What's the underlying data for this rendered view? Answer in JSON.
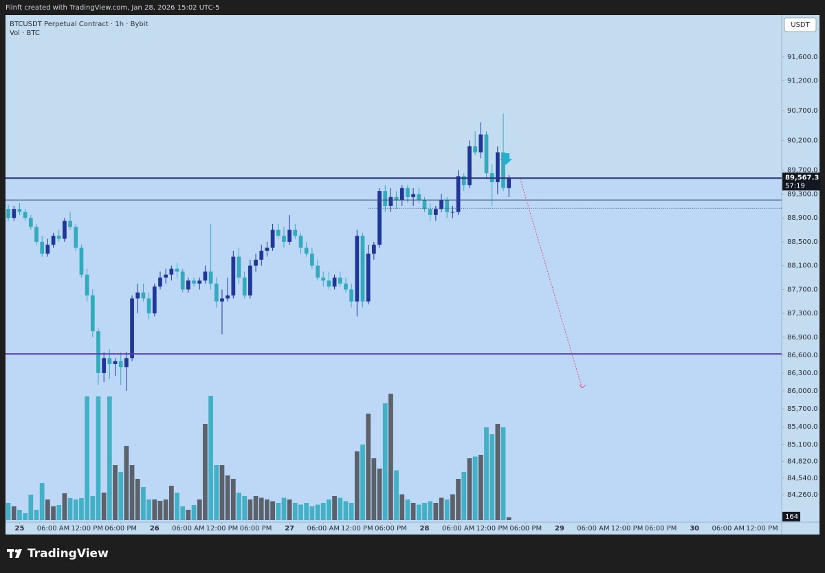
{
  "chart_data": {
    "type": "candlestick",
    "header": "Filnft created with TradingView.com, Jan 28, 2026 15:02 UTC-5",
    "title": "BTCUSDT Perpetual Contract · 1h · Bybit",
    "volume_title": "Vol · BTC",
    "currency": "USDT",
    "brand": "TradingView",
    "countdown": "57:19",
    "up_color": "#1f3796",
    "down_color": "#35a9be",
    "volume_up_color": "#5b626c",
    "volume_down_color": "#44b0c6",
    "open": [
      89050,
      88900,
      89050,
      89000,
      88900,
      88750,
      88500,
      88300,
      88450,
      88600,
      88550,
      88850,
      88750,
      88400,
      87950,
      87600,
      87000,
      86300,
      86550,
      86450,
      86500,
      86400,
      86550,
      87550,
      87650,
      87550,
      87300,
      87750,
      87900,
      87950,
      88050,
      88000,
      87700,
      87850,
      87800,
      87850,
      88000,
      87800,
      87500,
      87550,
      87600,
      88250,
      87900,
      87600,
      88100,
      88200,
      88350,
      88400,
      88700,
      88600,
      88500,
      88700,
      88600,
      88400,
      88300,
      88100,
      87900,
      87850,
      87750,
      87900,
      87800,
      87700,
      87500,
      88600,
      87500,
      88300,
      88450,
      89350,
      89100,
      89250,
      89200,
      89400,
      89250,
      89300,
      89200,
      89050,
      88950,
      89050,
      89200,
      89000,
      89000,
      89600,
      89450,
      90100,
      90000,
      90300,
      89650,
      89500,
      90000,
      89400
    ],
    "high": [
      89120,
      89100,
      89150,
      89050,
      88950,
      88800,
      88600,
      88550,
      88650,
      88700,
      88900,
      89000,
      88800,
      88450,
      88050,
      87700,
      87050,
      86650,
      86700,
      86550,
      86650,
      86650,
      87600,
      87800,
      87800,
      87650,
      87800,
      88000,
      88050,
      88100,
      88150,
      88050,
      87900,
      87900,
      87900,
      88100,
      88800,
      87900,
      87700,
      87900,
      88350,
      88400,
      88000,
      88200,
      88300,
      88450,
      88500,
      88800,
      88800,
      88750,
      88950,
      88800,
      88650,
      88500,
      88400,
      88200,
      88000,
      88000,
      87950,
      88000,
      87900,
      87800,
      88700,
      88650,
      88450,
      88500,
      89400,
      89450,
      89400,
      89350,
      89450,
      89450,
      89400,
      89400,
      89250,
      89150,
      89100,
      89300,
      89250,
      89100,
      89700,
      89650,
      90200,
      90350,
      90500,
      90350,
      89800,
      90100,
      90650,
      89620
    ],
    "low": [
      88850,
      88850,
      88950,
      88850,
      88700,
      88450,
      88250,
      88250,
      88400,
      88500,
      88500,
      88700,
      88350,
      87900,
      87500,
      86900,
      86100,
      86150,
      86200,
      86250,
      86100,
      86000,
      86500,
      87300,
      87500,
      87200,
      87250,
      87700,
      87800,
      87850,
      87900,
      87650,
      87650,
      87750,
      87700,
      87800,
      87700,
      87400,
      86950,
      87500,
      87550,
      87800,
      87550,
      87550,
      88000,
      88100,
      88250,
      88350,
      88550,
      88400,
      88450,
      88550,
      88300,
      88250,
      88050,
      87850,
      87750,
      87700,
      87700,
      87750,
      87650,
      87400,
      87250,
      87400,
      87450,
      88200,
      88400,
      89000,
      89000,
      89050,
      89100,
      89150,
      89100,
      89150,
      89000,
      88850,
      88850,
      89000,
      88900,
      88900,
      88950,
      89350,
      89400,
      89950,
      89900,
      89550,
      89100,
      89300,
      89350,
      89250
    ],
    "close": [
      88900,
      89050,
      89000,
      88900,
      88750,
      88500,
      88300,
      88450,
      88600,
      88550,
      88850,
      88750,
      88400,
      87950,
      87600,
      87000,
      86300,
      86550,
      86450,
      86500,
      86400,
      86550,
      87550,
      87650,
      87550,
      87300,
      87750,
      87900,
      87950,
      88050,
      88000,
      87700,
      87850,
      87800,
      87850,
      88000,
      87800,
      87500,
      87550,
      87600,
      88250,
      87900,
      87600,
      88100,
      88200,
      88350,
      88400,
      88700,
      88600,
      88500,
      88700,
      88600,
      88400,
      88300,
      88100,
      87900,
      87850,
      87750,
      87900,
      87800,
      87700,
      87500,
      88600,
      87500,
      88300,
      88450,
      89350,
      89100,
      89250,
      89200,
      89400,
      89250,
      89300,
      89200,
      89050,
      88950,
      89050,
      89200,
      89000,
      89000,
      89600,
      89450,
      90100,
      90000,
      90300,
      89650,
      89500,
      90000,
      89400,
      89567.3
    ],
    "volume": [
      1000,
      800,
      600,
      400,
      1480,
      600,
      2160,
      1200,
      800,
      880,
      1560,
      1280,
      1200,
      1280,
      7200,
      1400,
      7200,
      1600,
      7200,
      3200,
      2800,
      4320,
      3200,
      2400,
      1920,
      1200,
      1200,
      1120,
      1200,
      2000,
      1600,
      800,
      600,
      880,
      1200,
      5600,
      7240,
      3200,
      3200,
      2600,
      2400,
      1600,
      1400,
      1200,
      1400,
      1300,
      1200,
      1100,
      1000,
      1300,
      1200,
      1000,
      900,
      1000,
      800,
      900,
      1000,
      1200,
      1400,
      1300,
      1100,
      1000,
      4000,
      4400,
      6200,
      3600,
      3000,
      6800,
      7360,
      2900,
      1500,
      1200,
      1000,
      900,
      1000,
      1100,
      1000,
      1300,
      1200,
      1500,
      2400,
      2800,
      3600,
      3700,
      3800,
      5400,
      5000,
      5600,
      5400,
      164
    ],
    "vlim": [
      0,
      8000
    ],
    "xlim": [
      -0.5,
      137.5
    ],
    "xticks": [
      {
        "value": 2,
        "label": "25"
      },
      {
        "value": 8,
        "label": "06:00 AM"
      },
      {
        "value": 14,
        "label": "12:00 PM"
      },
      {
        "value": 20,
        "label": "06:00 PM"
      },
      {
        "value": 26,
        "label": "26"
      },
      {
        "value": 32,
        "label": "06:00 AM"
      },
      {
        "value": 38,
        "label": "12:00 PM"
      },
      {
        "value": 44,
        "label": "06:00 PM"
      },
      {
        "value": 50,
        "label": "27"
      },
      {
        "value": 56,
        "label": "06:00 AM"
      },
      {
        "value": 62,
        "label": "12:00 PM"
      },
      {
        "value": 68,
        "label": "06:00 PM"
      },
      {
        "value": 74,
        "label": "28"
      },
      {
        "value": 80,
        "label": "06:00 AM"
      },
      {
        "value": 86,
        "label": "12:00 PM"
      },
      {
        "value": 92,
        "label": "06:00 PM"
      },
      {
        "value": 98,
        "label": "29"
      },
      {
        "value": 104,
        "label": "06:00 AM"
      },
      {
        "value": 110,
        "label": "12:00 PM"
      },
      {
        "value": 116,
        "label": "06:00 PM"
      },
      {
        "value": 122,
        "label": "30"
      },
      {
        "value": 128,
        "label": "06:00 AM"
      },
      {
        "value": 134,
        "label": "12:00 PM"
      }
    ],
    "ylim": [
      83800,
      92300
    ],
    "yticks": [
      {
        "value": 91600,
        "label": "91,600.0"
      },
      {
        "value": 91200,
        "label": "91,200.0"
      },
      {
        "value": 90700,
        "label": "90,700.0"
      },
      {
        "value": 90200,
        "label": "90,200.0"
      },
      {
        "value": 89700,
        "label": "89,700.0"
      },
      {
        "value": 89300,
        "label": "89,300.0"
      },
      {
        "value": 88900,
        "label": "88,900.0"
      },
      {
        "value": 88500,
        "label": "88,500.0"
      },
      {
        "value": 88100,
        "label": "88,100.0"
      },
      {
        "value": 87700,
        "label": "87,700.0"
      },
      {
        "value": 87300,
        "label": "87,300.0"
      },
      {
        "value": 86900,
        "label": "86,900.0"
      },
      {
        "value": 86600,
        "label": "86,600.0"
      },
      {
        "value": 86300,
        "label": "86,300.0"
      },
      {
        "value": 86000,
        "label": "86,000.0"
      },
      {
        "value": 85700,
        "label": "85,700.0"
      },
      {
        "value": 85400,
        "label": "85,400.0"
      },
      {
        "value": 85100,
        "label": "85,100.0"
      },
      {
        "value": 84820,
        "label": "84,820.0"
      },
      {
        "value": 84540,
        "label": "84,540.0"
      },
      {
        "value": 84260,
        "label": "84,260.0"
      }
    ],
    "price_marker": {
      "value": 89567.3,
      "label": "89,567.3"
    },
    "levels": [
      {
        "value": 89200,
        "color": "#3b4a6b",
        "style": "solid"
      },
      {
        "value": 89060,
        "color": "#3b4a6b",
        "style": "dotted"
      },
      {
        "value": 86620,
        "color": "#5b3fb5",
        "style": "solid"
      }
    ],
    "projection": {
      "x": [
        91,
        102
      ],
      "y": [
        89560,
        86050
      ],
      "color": "#e0507a"
    }
  }
}
